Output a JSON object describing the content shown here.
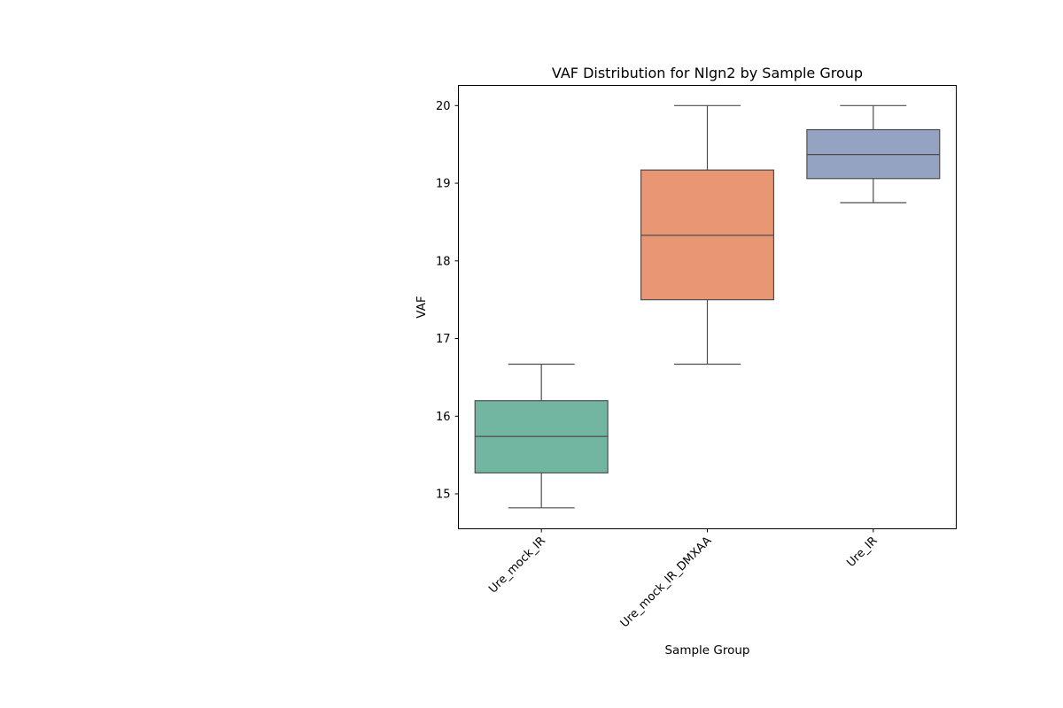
{
  "chart_data": {
    "type": "box",
    "title": "VAF Distribution for Nlgn2 by Sample Group",
    "xlabel": "Sample Group",
    "ylabel": "VAF",
    "ylim": [
      14.55,
      20.26
    ],
    "yticks": [
      15,
      16,
      17,
      18,
      19,
      20
    ],
    "grid": false,
    "legend": "none",
    "categories": [
      "Ure_mock_IR",
      "Ure_mock_IR_DMXAA",
      "Ure_IR"
    ],
    "boxes": [
      {
        "category": "Ure_mock_IR",
        "whisker_low": 14.82,
        "q1": 15.27,
        "median": 15.74,
        "q3": 16.2,
        "whisker_high": 16.67,
        "color": "#72b6a1"
      },
      {
        "category": "Ure_mock_IR_DMXAA",
        "whisker_low": 16.67,
        "q1": 17.5,
        "median": 18.33,
        "q3": 19.17,
        "whisker_high": 20.0,
        "color": "#e99675"
      },
      {
        "category": "Ure_IR",
        "whisker_low": 18.75,
        "q1": 19.06,
        "median": 19.37,
        "q3": 19.69,
        "whisker_high": 20.0,
        "color": "#95a3c3"
      }
    ],
    "line_color": "#4d4d4d"
  }
}
